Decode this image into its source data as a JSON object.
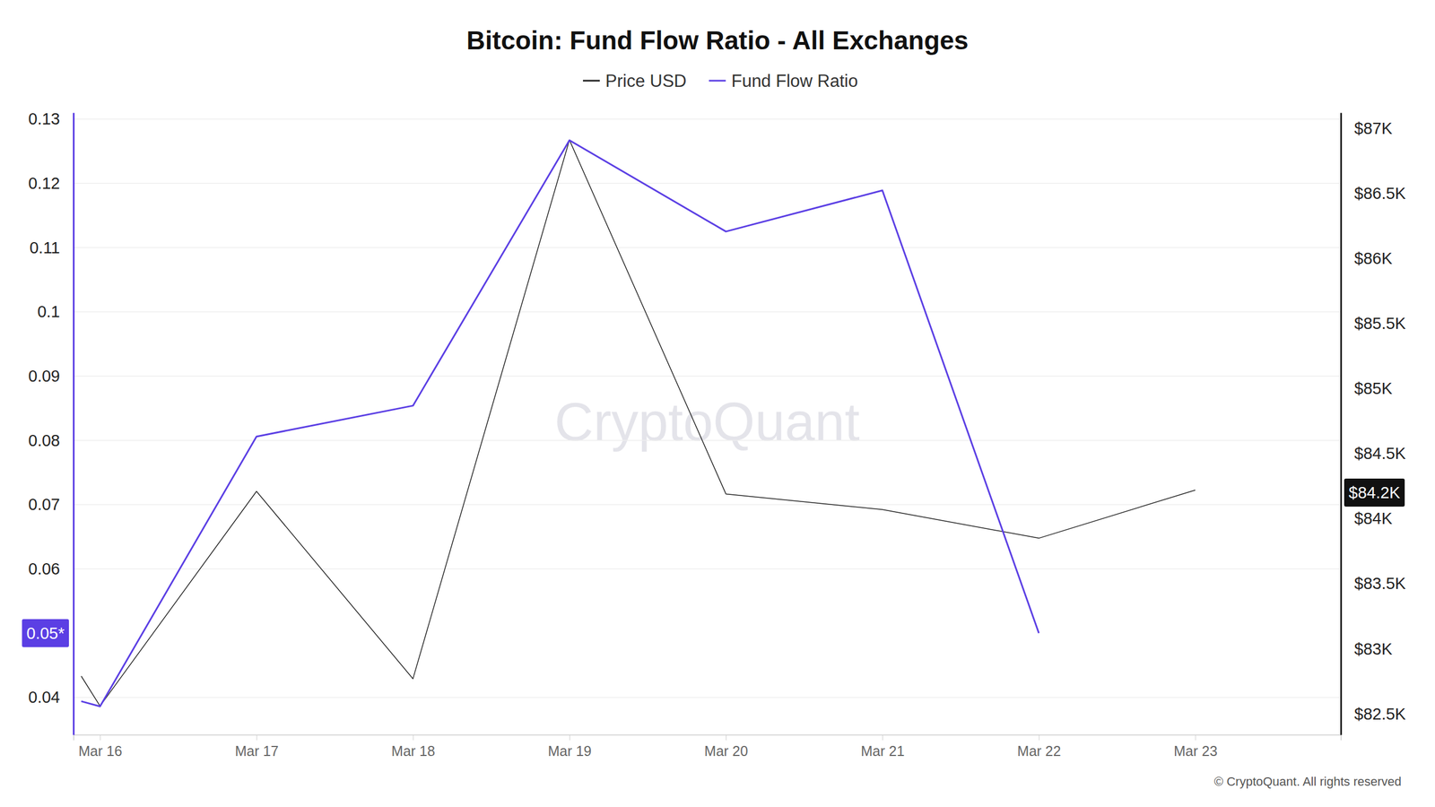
{
  "chart_data": {
    "type": "line",
    "title": "Bitcoin: Fund Flow Ratio - All Exchanges",
    "x": [
      -0.12,
      0,
      1,
      2,
      3,
      4,
      5,
      6,
      7
    ],
    "xlim": [
      -0.17,
      7.93
    ],
    "xticks": [
      {
        "value": 0,
        "label": "Mar 16"
      },
      {
        "value": 1,
        "label": "Mar 17"
      },
      {
        "value": 2,
        "label": "Mar 18"
      },
      {
        "value": 3,
        "label": "Mar 19"
      },
      {
        "value": 4,
        "label": "Mar 20"
      },
      {
        "value": 5,
        "label": "Mar 21"
      },
      {
        "value": 6,
        "label": "Mar 22"
      },
      {
        "value": 7,
        "label": "Mar 23"
      }
    ],
    "ylim": [
      0.0342,
      0.131
    ],
    "yticks": [
      0.04,
      0.06,
      0.07,
      0.08,
      0.09,
      0.1,
      0.11,
      0.12,
      0.13
    ],
    "y2lim": [
      82340,
      87120
    ],
    "y2ticks": [
      {
        "value": 82500,
        "label": "$82.5K"
      },
      {
        "value": 83000,
        "label": "$83K"
      },
      {
        "value": 83500,
        "label": "$83.5K"
      },
      {
        "value": 84000,
        "label": "$84K"
      },
      {
        "value": 84500,
        "label": "$84.5K"
      },
      {
        "value": 85000,
        "label": "$85K"
      },
      {
        "value": 85500,
        "label": "$85.5K"
      },
      {
        "value": 86000,
        "label": "$86K"
      },
      {
        "value": 86500,
        "label": "$86.5K"
      },
      {
        "value": 87000,
        "label": "$87K"
      }
    ],
    "grid": true,
    "legend": "top",
    "series": [
      {
        "name": "Price USD",
        "color": "#222222",
        "axis": "y2",
        "values": [
          82790,
          82560,
          84210,
          82770,
          86910,
          84190,
          84070,
          83850,
          84220
        ]
      },
      {
        "name": "Fund Flow Ratio",
        "color": "#5b3fe4",
        "values": [
          0.0394,
          0.0386,
          0.0806,
          0.0854,
          0.1267,
          0.1125,
          0.1189,
          0.05,
          null
        ]
      }
    ],
    "annotations": [
      {
        "text": "0.05*",
        "value": 0.05,
        "axis": "y",
        "color": "#5b3fe4"
      },
      {
        "text": "$84.2K",
        "value": 84200,
        "axis": "y2",
        "color": "#111111"
      }
    ],
    "watermark": "CryptoQuant",
    "credit": "© CryptoQuant. All rights reserved"
  }
}
